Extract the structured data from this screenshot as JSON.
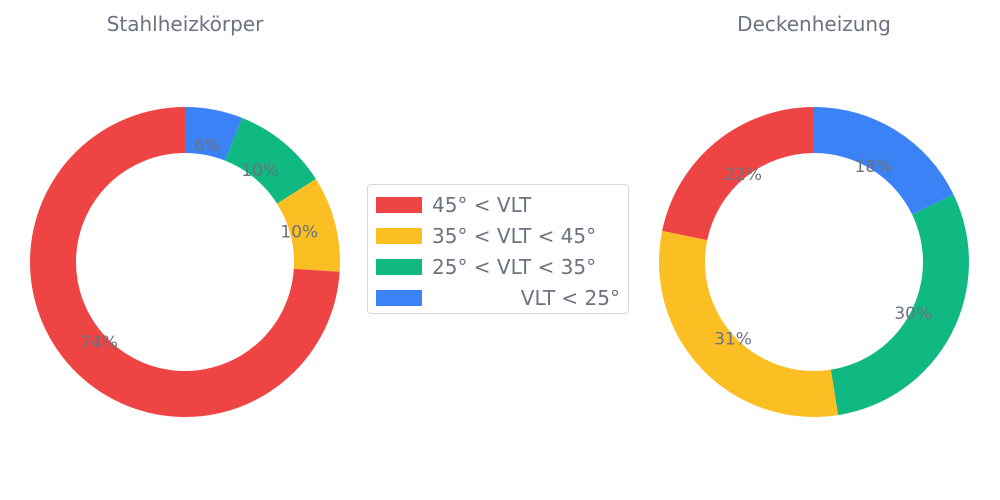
{
  "chart_data": [
    {
      "type": "pie",
      "title": "Stahlheizkörper",
      "categories": [
        "45° < VLT",
        "35° < VLT < 45°",
        "25° < VLT < 35°",
        "VLT < 25°"
      ],
      "values": [
        74,
        10,
        10,
        6
      ],
      "labels": [
        "74%",
        "10%",
        "10%",
        "6%"
      ],
      "colors": [
        "#ef4444",
        "#fbbf24",
        "#10b981",
        "#3b82f6"
      ],
      "donut": true,
      "legend_position": "center"
    },
    {
      "type": "pie",
      "title": "Deckenheizung",
      "categories": [
        "45° < VLT",
        "35° < VLT < 45°",
        "25° < VLT < 35°",
        "VLT < 25°"
      ],
      "values": [
        22,
        31,
        30,
        18
      ],
      "labels": [
        "22%",
        "31%",
        "30%",
        "18%"
      ],
      "colors": [
        "#ef4444",
        "#fbbf24",
        "#10b981",
        "#3b82f6"
      ],
      "donut": true,
      "legend_position": "center"
    }
  ],
  "legend": {
    "entries": [
      {
        "label": "45° < VLT",
        "color": "#ef4444"
      },
      {
        "label": "35° < VLT < 45°",
        "color": "#fbbf24"
      },
      {
        "label": "25° < VLT < 35°",
        "color": "#10b981"
      },
      {
        "label": "VLT < 25°",
        "color": "#3b82f6"
      }
    ]
  }
}
